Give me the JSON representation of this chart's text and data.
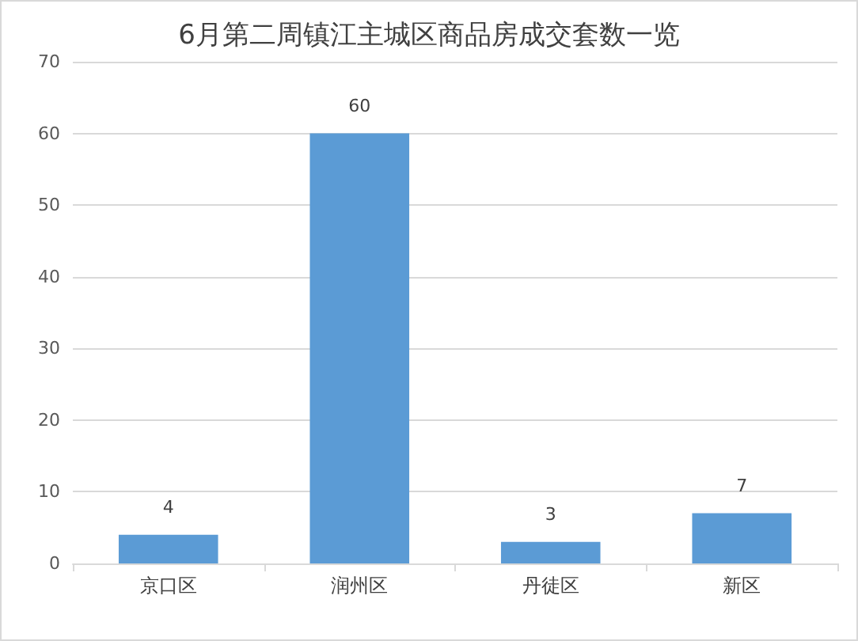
{
  "chart_data": {
    "type": "bar",
    "title": "6月第二周镇江主城区商品房成交套数一览",
    "categories": [
      "京口区",
      "润州区",
      "丹徒区",
      "新区"
    ],
    "values": [
      4,
      60,
      3,
      7
    ],
    "color": "#5b9bd5",
    "ylim": [
      0,
      70
    ],
    "yticks": [
      0,
      10,
      20,
      30,
      40,
      50,
      60,
      70
    ],
    "grid": "y",
    "data_labels": true
  }
}
